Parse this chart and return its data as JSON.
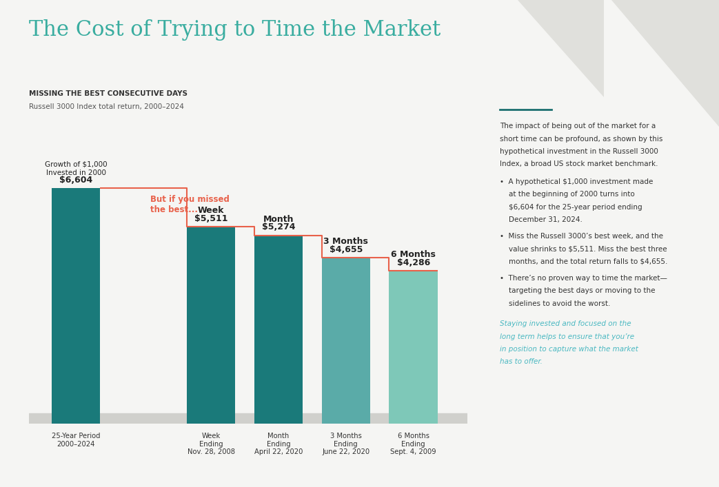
{
  "title": "The Cost of Trying to Time the Market",
  "subtitle_bold": "MISSING THE BEST CONSECUTIVE DAYS",
  "subtitle_light": "Russell 3000 Index total return, 2000–2024",
  "categories": [
    "25-Year Period\n2000–2024",
    "Week\nEnding\nNov. 28, 2008",
    "Month\nEnding\nApril 22, 2020",
    "3 Months\nEnding\nJune 22, 2020",
    "6 Months\nEnding\nSept. 4, 2009"
  ],
  "cat_labels_top": [
    "",
    "Week",
    "Month",
    "3 Months",
    "6 Months"
  ],
  "values": [
    6604,
    5511,
    5274,
    4655,
    4286
  ],
  "value_labels": [
    "$6,604",
    "$5,511",
    "$5,274",
    "$4,655",
    "$4,286"
  ],
  "bar_colors": [
    "#1a7a7a",
    "#1a7a7a",
    "#1a7a7a",
    "#5aaba8",
    "#7ec8b8"
  ],
  "step_line_color": "#e8614a",
  "step_label": "But if you missed\nthe best...",
  "annotation_above": "Growth of $1,000\nInvested in 2000",
  "background_color": "#f5f5f3",
  "title_color": "#3aada0",
  "subtitle_bold_color": "#333333",
  "subtitle_light_color": "#555555",
  "bar_label_color": "#222222",
  "right_panel_line_color": "#1a6e6e",
  "right_text_intro": "The impact of being out of the market for a short time can be profound, as shown by this hypothetical investment in the Russell 3000 Index, a broad US stock market benchmark.",
  "right_bullets": [
    "A hypothetical $1,000 investment made at the beginning of 2000 turns into $6,604 for the 25-year period ending December 31, 2024.",
    "Miss the Russell 3000’s best week, and the value shrinks to $5,511. Miss the best three months, and the total return falls to $4,655.",
    "There’s no proven way to time the market—targeting the best days or moving to the sidelines to avoid the worst."
  ],
  "right_italic": "Staying invested and focused on the\nlong term helps to ensure that you’re\nin position to capture what the market\nhas to offer.",
  "right_italic_color": "#4ab8c1",
  "right_text_color": "#333333",
  "ylim": [
    0,
    7500
  ],
  "fig_width": 10.43,
  "fig_height": 7.07
}
